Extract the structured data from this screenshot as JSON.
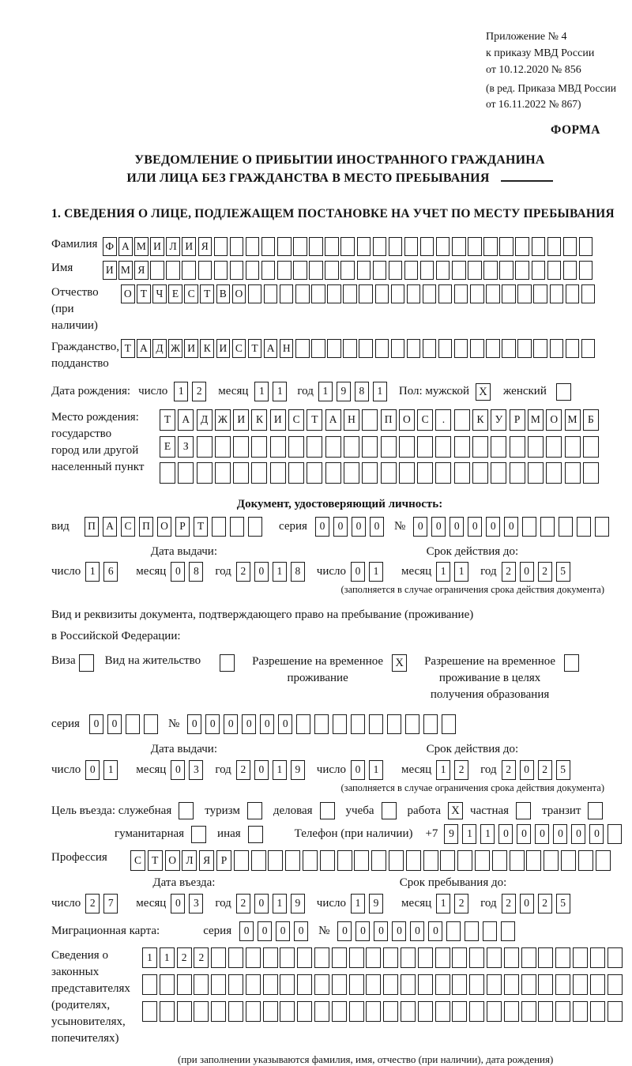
{
  "header": {
    "appendix_line1": "Приложение № 4",
    "appendix_line2": "к приказу МВД России",
    "appendix_line3": "от 10.12.2020 № 856",
    "edition_line1": "(в ред. Приказа МВД России",
    "edition_line2": "от 16.11.2022 № 867)",
    "form_label": "ФОРМА"
  },
  "title": {
    "line1": "УВЕДОМЛЕНИЕ О ПРИБЫТИИ ИНОСТРАННОГО ГРАЖДАНИНА",
    "line2": "ИЛИ ЛИЦА БЕЗ ГРАЖДАНСТВА В МЕСТО ПРЕБЫВАНИЯ"
  },
  "section1_heading": "1. СВЕДЕНИЯ О ЛИЦЕ, ПОДЛЕЖАЩЕМ ПОСТАНОВКЕ НА УЧЕТ ПО МЕСТУ ПРЕБЫВАНИЯ",
  "date_labels": {
    "day": "число",
    "month": "месяц",
    "year": "год"
  },
  "person": {
    "surname": {
      "label": "Фамилия",
      "value": "ФАМИЛИЯ",
      "count": 31
    },
    "given_name": {
      "label": "Имя",
      "value": "ИМЯ",
      "count": 31
    },
    "patronymic": {
      "label1": "Отчество",
      "label2": "(при наличии)",
      "value": "ОТЧЕСТВО",
      "count": 30
    },
    "citizenship": {
      "label1": "Гражданство,",
      "label2": "подданство",
      "value": "ТАДЖИКИСТАН",
      "count": 30
    },
    "birth_date": {
      "label": "Дата рождения:",
      "day": "12",
      "month": "11",
      "year": "1981"
    },
    "sex": {
      "label": "Пол: мужской",
      "male_checked": true,
      "female_label": "женский",
      "female_checked": false
    },
    "birth_place": {
      "label1": "Место рождения:",
      "label2": "государство",
      "label3": "город или другой",
      "label4": "населенный пункт",
      "row1": {
        "value": "ТАДЖИКИСТАН ПОС. КУРМОМБ",
        "count": 24
      },
      "row2": {
        "value": "ЕЗ",
        "count": 24
      },
      "row3": {
        "value": "",
        "count": 24
      }
    }
  },
  "identity_doc": {
    "heading": "Документ, удостоверяющий личность:",
    "type": {
      "label": "вид",
      "value": "ПАСПОРТ",
      "count": 10
    },
    "series": {
      "label": "серия",
      "value": "0000",
      "count": 4
    },
    "number": {
      "label": "№",
      "value": "000000",
      "count": 11
    },
    "issue_date": {
      "heading": "Дата выдачи:",
      "day": "16",
      "month": "08",
      "year": "2018"
    },
    "valid_until": {
      "heading": "Срок действия до:",
      "day": "01",
      "month": "11",
      "year": "2025"
    },
    "note": "(заполняется в случае ограничения срока действия документа)"
  },
  "residence_doc": {
    "intro1": "Вид и реквизиты документа, подтверждающего право на пребывание (проживание)",
    "intro2": "в Российской Федерации:",
    "visa_label": "Виза",
    "visa_checked": false,
    "residence_permit_label": "Вид на жительство",
    "residence_permit_checked": false,
    "temp_permit_line1": "Разрешение на временное",
    "temp_permit_line2": "проживание",
    "temp_permit_checked": true,
    "edu_permit_line1": "Разрешение на временное",
    "edu_permit_line2": "проживание в целях",
    "edu_permit_line3": "получения образования",
    "edu_permit_checked": false,
    "series": {
      "label": "серия",
      "value": "00",
      "count": 4
    },
    "number": {
      "label": "№",
      "value": "000000",
      "count": 15
    },
    "issue_date": {
      "heading": "Дата выдачи:",
      "day": "01",
      "month": "03",
      "year": "2019"
    },
    "valid_until": {
      "heading": "Срок действия до:",
      "day": "01",
      "month": "12",
      "year": "2025"
    },
    "note": "(заполняется в случае ограничения срока действия документа)"
  },
  "visit": {
    "purpose_label": "Цель въезда: служебная",
    "options": [
      {
        "label": "служебная",
        "checked": false
      },
      {
        "label": "туризм",
        "checked": false
      },
      {
        "label": "деловая",
        "checked": false
      },
      {
        "label": "учеба",
        "checked": false
      },
      {
        "label": "работа",
        "checked": true
      },
      {
        "label": "частная",
        "checked": false
      },
      {
        "label": "транзит",
        "checked": false
      }
    ],
    "options2": [
      {
        "label": "гуманитарная",
        "checked": false
      },
      {
        "label": "иная",
        "checked": false
      }
    ],
    "phone": {
      "label": "Телефон (при наличии)",
      "prefix": "+7",
      "value": "911000000",
      "count": 10
    },
    "profession": {
      "label": "Профессия",
      "value": "СТОЛЯР",
      "count": 28
    },
    "entry_date": {
      "heading": "Дата въезда:",
      "day": "27",
      "month": "03",
      "year": "2019"
    },
    "stay_until": {
      "heading": "Срок пребывания до:",
      "day": "19",
      "month": "12",
      "year": "2025"
    }
  },
  "migration_card": {
    "label": "Миграционная карта:",
    "series": {
      "label": "серия",
      "value": "0000",
      "count": 4
    },
    "number": {
      "label": "№",
      "value": "000000",
      "count": 10
    }
  },
  "representatives": {
    "label1": "Сведения о",
    "label2": "законных",
    "label3": "представителях",
    "label4": "(родителях,",
    "label5": "усыновителях,",
    "label6": "попечителях)",
    "row1": {
      "value": "1122",
      "count": 28
    },
    "row2": {
      "value": "",
      "count": 28
    },
    "row3": {
      "value": "",
      "count": 28
    },
    "note": "(при заполнении указываются фамилия, имя, отчество (при наличии), дата рождения)"
  }
}
